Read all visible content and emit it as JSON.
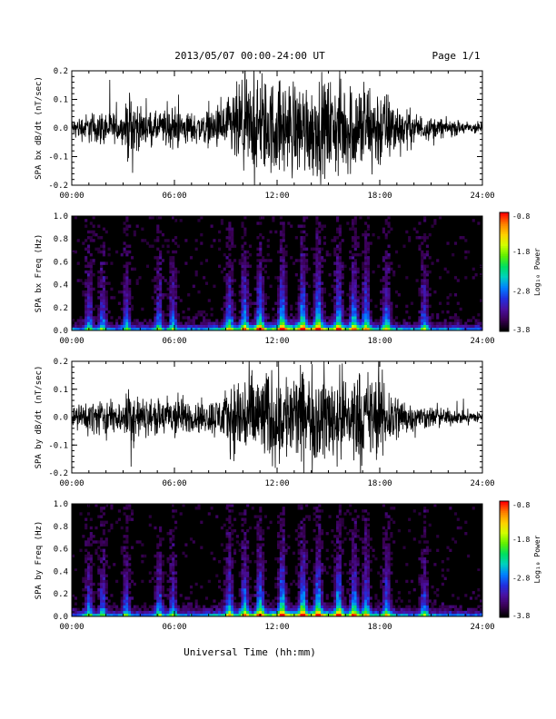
{
  "header": {
    "title": "2013/05/07  00:00-24:00 UT",
    "page": "Page 1/1"
  },
  "colorbar": {
    "label": "Log₁₀ Power",
    "ticks": [
      "-0.8",
      "-1.8",
      "-2.8",
      "-3.8"
    ],
    "range": [
      -3.8,
      -0.8
    ],
    "colors": [
      "#000000",
      "#3a0055",
      "#4a10a0",
      "#2030e0",
      "#0080ff",
      "#00d0c0",
      "#00e060",
      "#60f000",
      "#d0ff00",
      "#ffd000",
      "#ff8000",
      "#ff0000"
    ]
  },
  "xlabel": "Universal Time (hh:mm)",
  "chart_data": [
    {
      "type": "line",
      "ylabel": "SPA bx dB/dt (nT/sec)",
      "xlim": [
        0,
        24
      ],
      "ylim": [
        -0.2,
        0.2
      ],
      "xticks": [
        "00:00",
        "06:00",
        "12:00",
        "18:00",
        "24:00"
      ],
      "yticks": [
        "0.2",
        "0.1",
        "0.0",
        "-0.1",
        "-0.2"
      ],
      "envelope": {
        "hours": [
          0,
          1,
          2,
          3,
          3.5,
          4,
          5,
          6,
          7,
          8,
          9,
          9.7,
          10,
          11,
          12,
          13,
          14,
          15,
          16,
          17,
          18,
          19,
          20,
          21,
          22,
          23,
          24
        ],
        "amplitude": [
          0.04,
          0.07,
          0.08,
          0.06,
          0.2,
          0.08,
          0.07,
          0.1,
          0.07,
          0.08,
          0.12,
          0.2,
          0.22,
          0.22,
          0.22,
          0.22,
          0.22,
          0.22,
          0.22,
          0.22,
          0.2,
          0.12,
          0.07,
          0.05,
          0.04,
          0.03,
          0.03
        ]
      }
    },
    {
      "type": "heatmap",
      "ylabel": "SPA bx Freq (Hz)",
      "xlim": [
        0,
        24
      ],
      "ylim": [
        0.0,
        1.0
      ],
      "xticks": [
        "00:00",
        "06:00",
        "12:00",
        "18:00",
        "24:00"
      ],
      "yticks": [
        "1.0",
        "0.8",
        "0.6",
        "0.4",
        "0.2",
        "0.0"
      ],
      "bursts": [
        1.0,
        1.8,
        3.2,
        5.1,
        5.9,
        9.2,
        10.1,
        11.0,
        12.3,
        13.5,
        14.4,
        15.6,
        16.5,
        17.2,
        18.4,
        20.6
      ],
      "low_freq_band_power": -2.2,
      "peak_power": -0.8
    },
    {
      "type": "line",
      "ylabel": "SPA by dB/dt (nT/sec)",
      "xlim": [
        0,
        24
      ],
      "ylim": [
        -0.2,
        0.2
      ],
      "xticks": [
        "00:00",
        "06:00",
        "12:00",
        "18:00",
        "24:00"
      ],
      "yticks": [
        "0.2",
        "0.1",
        "0.0",
        "-0.1",
        "-0.2"
      ],
      "envelope": {
        "hours": [
          0,
          1,
          2,
          3,
          3.5,
          4,
          5,
          6,
          7,
          8,
          9,
          9.7,
          10,
          11,
          12,
          13,
          14,
          15,
          16,
          17,
          18,
          19,
          20,
          21,
          22,
          23,
          24
        ],
        "amplitude": [
          0.04,
          0.08,
          0.09,
          0.07,
          0.2,
          0.09,
          0.08,
          0.12,
          0.07,
          0.08,
          0.12,
          0.2,
          0.22,
          0.22,
          0.22,
          0.22,
          0.22,
          0.22,
          0.22,
          0.22,
          0.2,
          0.12,
          0.06,
          0.05,
          0.04,
          0.03,
          0.03
        ]
      }
    },
    {
      "type": "heatmap",
      "ylabel": "SPA by Freq (Hz)",
      "xlim": [
        0,
        24
      ],
      "ylim": [
        0.0,
        1.0
      ],
      "xticks": [
        "00:00",
        "06:00",
        "12:00",
        "18:00",
        "24:00"
      ],
      "yticks": [
        "1.0",
        "0.8",
        "0.6",
        "0.4",
        "0.2",
        "0.0"
      ],
      "bursts": [
        1.0,
        1.8,
        3.2,
        5.1,
        5.9,
        9.2,
        10.1,
        11.0,
        12.3,
        13.5,
        14.4,
        15.6,
        16.5,
        17.2,
        18.4,
        20.6
      ],
      "low_freq_band_power": -2.2,
      "peak_power": -0.8
    }
  ]
}
